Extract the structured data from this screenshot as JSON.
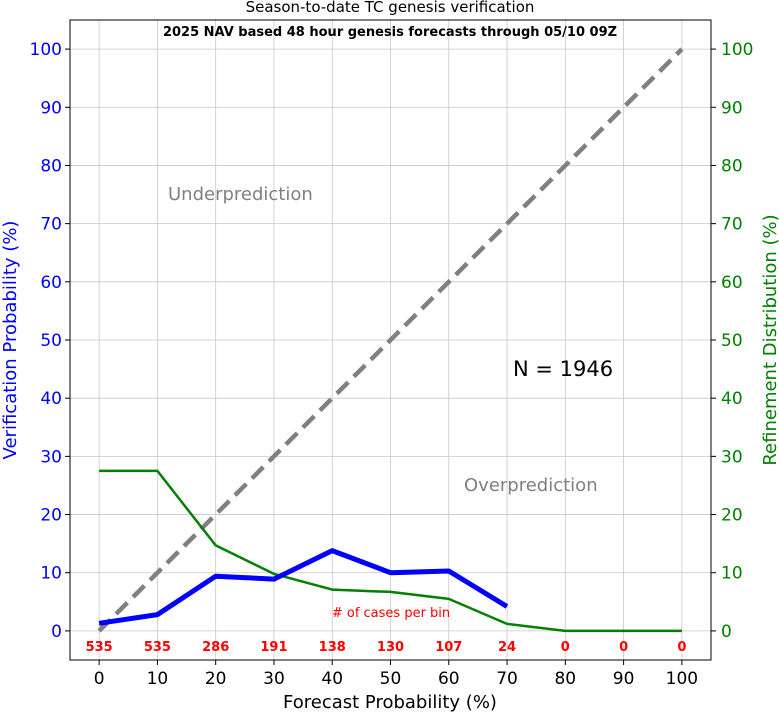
{
  "chart_data": {
    "type": "line",
    "title": "Season-to-date TC genesis verification",
    "subtitle": "2025 NAV based 48 hour genesis forecasts through 05/10 09Z",
    "xlabel": "Forecast Probability (%)",
    "ylabel": "Verification Probability (%)",
    "y2label": "Refinement Distribution (%)",
    "xlim": [
      -5,
      105
    ],
    "ylim": [
      -5,
      105
    ],
    "xticks": [
      0,
      10,
      20,
      30,
      40,
      50,
      60,
      70,
      80,
      90,
      100
    ],
    "yticks": [
      0,
      10,
      20,
      30,
      40,
      50,
      60,
      70,
      80,
      90,
      100
    ],
    "grid": true,
    "series": [
      {
        "role": "verification",
        "color": "#0000ff",
        "x": [
          0,
          10,
          20,
          30,
          40,
          50,
          60,
          70
        ],
        "y": [
          1.3,
          2.8,
          9.4,
          8.9,
          13.8,
          10.0,
          10.3,
          4.2
        ]
      },
      {
        "role": "refinement",
        "color": "#008000",
        "x": [
          0,
          10,
          20,
          30,
          40,
          50,
          60,
          70,
          80,
          90,
          100
        ],
        "y": [
          27.5,
          27.5,
          14.7,
          9.8,
          7.1,
          6.7,
          5.5,
          1.2,
          0,
          0,
          0
        ]
      },
      {
        "role": "perfect-reliability",
        "color": "#808080",
        "x": [
          0,
          100
        ],
        "y": [
          0,
          100
        ]
      }
    ],
    "annotations": {
      "underprediction": "Underprediction",
      "overprediction": "Overprediction",
      "n_label": "N = 1946",
      "cases_label": "# of cases per bin"
    },
    "case_counts": {
      "x": [
        0,
        10,
        20,
        30,
        40,
        50,
        60,
        70,
        80,
        90,
        100
      ],
      "labels": [
        "535",
        "535",
        "286",
        "191",
        "138",
        "130",
        "107",
        "24",
        "0",
        "0",
        "0"
      ]
    }
  }
}
